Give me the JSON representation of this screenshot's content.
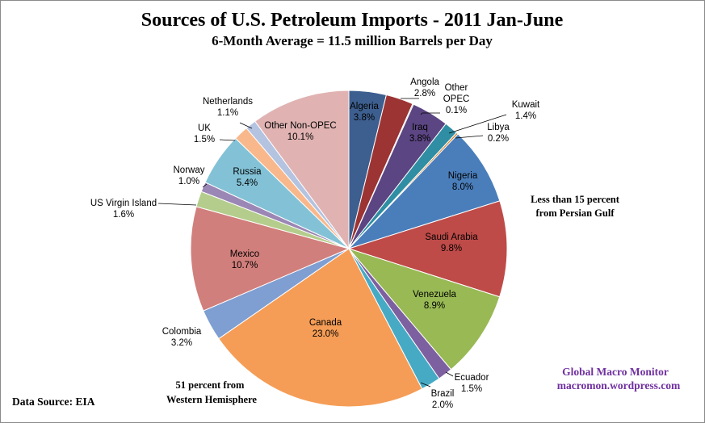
{
  "chart_data": {
    "type": "pie",
    "title": "Sources of U.S. Petroleum Imports - 2011 Jan-June",
    "subtitle": "6-Month Average = 11.5 million Barrels per Day",
    "slices": [
      {
        "name": "Algeria",
        "value": 3.8,
        "label": "3.8%",
        "color": "#3d5f8f"
      },
      {
        "name": "Angola",
        "value": 2.8,
        "label": "2.8%",
        "color": "#9c3434"
      },
      {
        "name": "Other OPEC",
        "value": 0.1,
        "label": "0.1%",
        "color": "#6b8a3a"
      },
      {
        "name": "Iraq",
        "value": 3.8,
        "label": "3.8%",
        "color": "#5b4582"
      },
      {
        "name": "Kuwait",
        "value": 1.4,
        "label": "1.4%",
        "color": "#2f8ea3"
      },
      {
        "name": "Libya",
        "value": 0.2,
        "label": "0.2%",
        "color": "#d88530"
      },
      {
        "name": "Nigeria",
        "value": 8.0,
        "label": "8.0%",
        "color": "#4a7ebb"
      },
      {
        "name": "Saudi Arabia",
        "value": 9.8,
        "label": "9.8%",
        "color": "#be4b48"
      },
      {
        "name": "Venezuela",
        "value": 8.9,
        "label": "8.9%",
        "color": "#98b954"
      },
      {
        "name": "Ecuador",
        "value": 1.5,
        "label": "1.5%",
        "color": "#7d60a0"
      },
      {
        "name": "Brazil",
        "value": 2.0,
        "label": "2.0%",
        "color": "#46aac5"
      },
      {
        "name": "Canada",
        "value": 23.0,
        "label": "23.0%",
        "color": "#f59d56"
      },
      {
        "name": "Colombia",
        "value": 3.2,
        "label": "3.2%",
        "color": "#7f9ed1"
      },
      {
        "name": "Mexico",
        "value": 10.7,
        "label": "10.7%",
        "color": "#d17f7c"
      },
      {
        "name": "US Virgin Island",
        "value": 1.6,
        "label": "1.6%",
        "color": "#b4cd8c"
      },
      {
        "name": "Norway",
        "value": 1.0,
        "label": "1.0%",
        "color": "#9b87b5"
      },
      {
        "name": "Russia",
        "value": 5.4,
        "label": "5.4%",
        "color": "#83c2d6"
      },
      {
        "name": "UK",
        "value": 1.5,
        "label": "1.5%",
        "color": "#f9b88c"
      },
      {
        "name": "Netherlands",
        "value": 1.1,
        "label": "1.1%",
        "color": "#b3c3e0"
      },
      {
        "name": "Other Non-OPEC",
        "value": 10.1,
        "label": "10.1%",
        "color": "#e0b3b2"
      }
    ],
    "start_angle": "12 o'clock",
    "direction": "clockwise",
    "legend": "none"
  },
  "annotations": {
    "persian_gulf_line1": "Less than 15 percent",
    "persian_gulf_line2": "from  Persian Gulf",
    "western_line1": "51 percent from",
    "western_line2": "Western Hemisphere",
    "data_source": "Data Source:  EIA",
    "credit_line1": "Global Macro Monitor",
    "credit_line2": "macromon.wordpress.com"
  }
}
